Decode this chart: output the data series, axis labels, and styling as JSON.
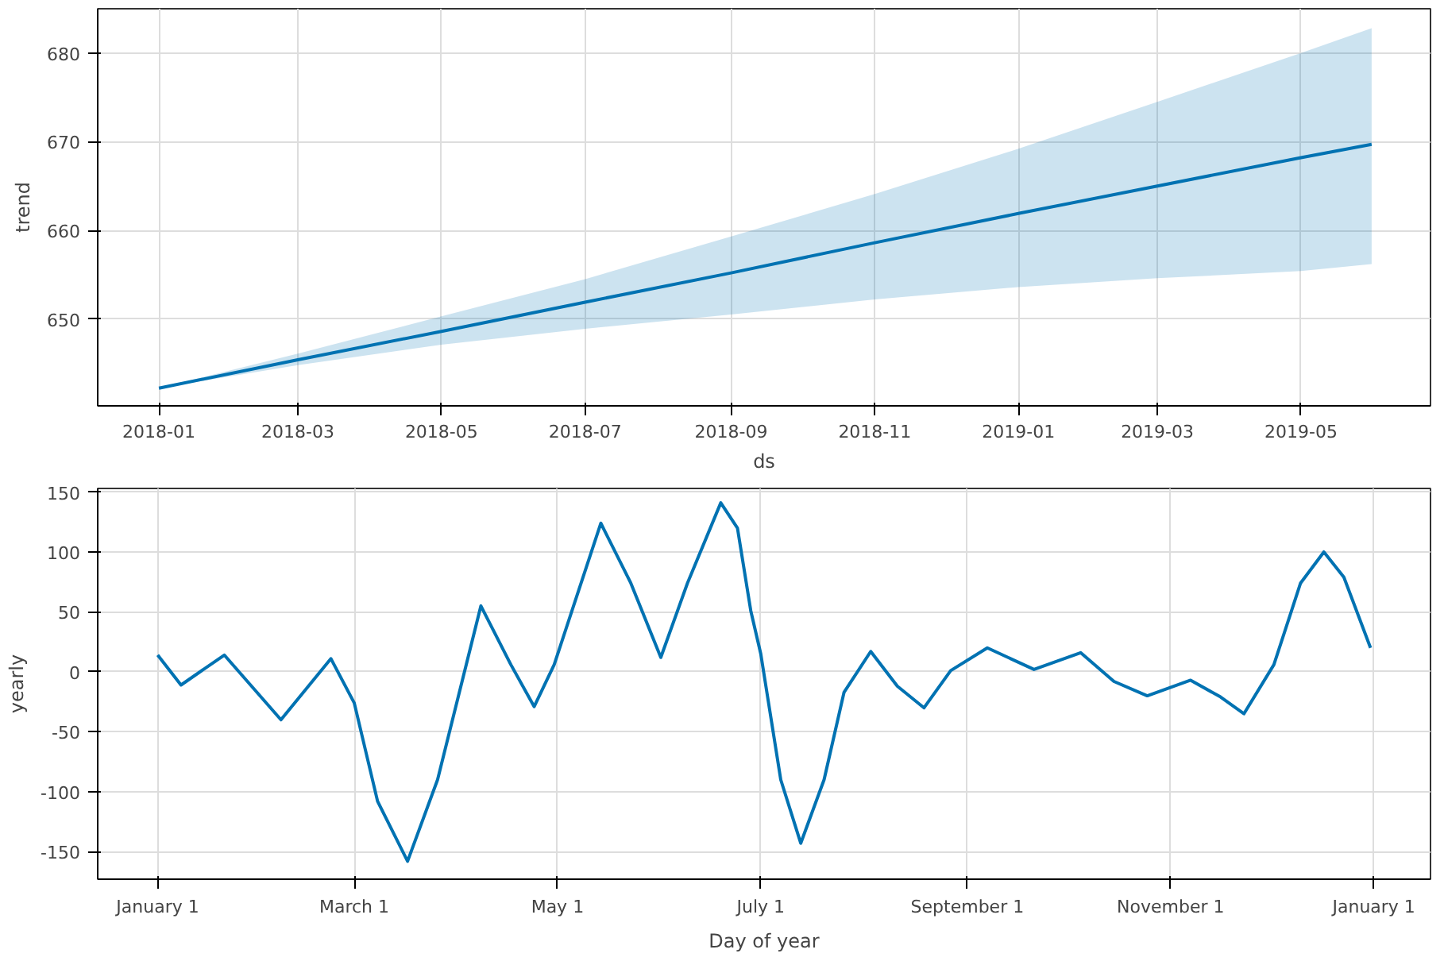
{
  "chart_data": [
    {
      "type": "line",
      "xlabel": "ds",
      "ylabel": "trend",
      "x": [
        "2018-01-01",
        "2018-03-01",
        "2018-05-01",
        "2018-07-01",
        "2018-09-01",
        "2018-11-01",
        "2019-01-01",
        "2019-03-01",
        "2019-05-01",
        "2019-05-31"
      ],
      "series": [
        {
          "color": "#0072b2",
          "values": [
            642.2,
            645.4,
            648.6,
            651.9,
            655.2,
            658.6,
            661.9,
            665.0,
            668.2,
            669.7
          ],
          "lower": [
            642.2,
            644.8,
            647.1,
            648.9,
            650.5,
            652.2,
            653.6,
            654.6,
            655.4,
            656.2
          ],
          "upper": [
            642.2,
            646.1,
            650.3,
            654.5,
            659.3,
            664.1,
            669.2,
            674.5,
            680.0,
            682.8
          ]
        }
      ],
      "xlim": [
        "2017-12-06",
        "2019-06-25"
      ],
      "xticks": [
        "2018-01",
        "2018-03",
        "2018-05",
        "2018-07",
        "2018-09",
        "2018-11",
        "2019-01",
        "2019-03",
        "2019-05"
      ],
      "ylim": [
        640.2,
        685
      ],
      "yticks": [
        650,
        660,
        670,
        680
      ],
      "grid": true
    },
    {
      "type": "line",
      "xlabel": "Day of year",
      "ylabel": "yearly",
      "x": [
        "2017-01-01",
        "2017-01-08",
        "2017-01-21",
        "2017-02-07",
        "2017-02-22",
        "2017-03-01",
        "2017-03-08",
        "2017-03-17",
        "2017-03-26",
        "2017-04-08",
        "2017-04-17",
        "2017-04-24",
        "2017-04-30",
        "2017-05-14",
        "2017-05-23",
        "2017-06-01",
        "2017-06-09",
        "2017-06-19",
        "2017-06-24",
        "2017-06-28",
        "2017-07-01",
        "2017-07-07",
        "2017-07-13",
        "2017-07-20",
        "2017-07-26",
        "2017-08-03",
        "2017-08-11",
        "2017-08-19",
        "2017-08-27",
        "2017-09-07",
        "2017-09-21",
        "2017-10-05",
        "2017-10-15",
        "2017-10-25",
        "2017-11-07",
        "2017-11-16",
        "2017-11-23",
        "2017-12-02",
        "2017-12-10",
        "2017-12-17",
        "2017-12-23",
        "2017-12-31"
      ],
      "series": [
        {
          "color": "#0072b2",
          "values": [
            14,
            -11,
            14,
            -40,
            11,
            -26,
            -108,
            -158,
            -90,
            55,
            6,
            -29,
            6,
            124,
            74,
            12,
            74,
            141,
            120,
            51,
            15,
            -90,
            -143,
            -90,
            -17,
            17,
            -12,
            -30,
            1,
            20,
            2,
            16,
            -8,
            -20,
            -7,
            -21,
            -35,
            6,
            74,
            100,
            79,
            20
          ]
        }
      ],
      "xlim": [
        "2016-12-14",
        "2018-01-18"
      ],
      "xticks": [
        {
          "value": "2017-01-01",
          "label": "January 1"
        },
        {
          "value": "2017-03-01",
          "label": "March 1"
        },
        {
          "value": "2017-05-01",
          "label": "May 1"
        },
        {
          "value": "2017-07-01",
          "label": "July 1"
        },
        {
          "value": "2017-09-01",
          "label": "September 1"
        },
        {
          "value": "2017-11-01",
          "label": "November 1"
        },
        {
          "value": "2018-01-01",
          "label": "January 1"
        }
      ],
      "ylim": [
        -173,
        153
      ],
      "yticks": [
        -150,
        -100,
        -50,
        0,
        50,
        100,
        150
      ],
      "grid": true
    }
  ]
}
